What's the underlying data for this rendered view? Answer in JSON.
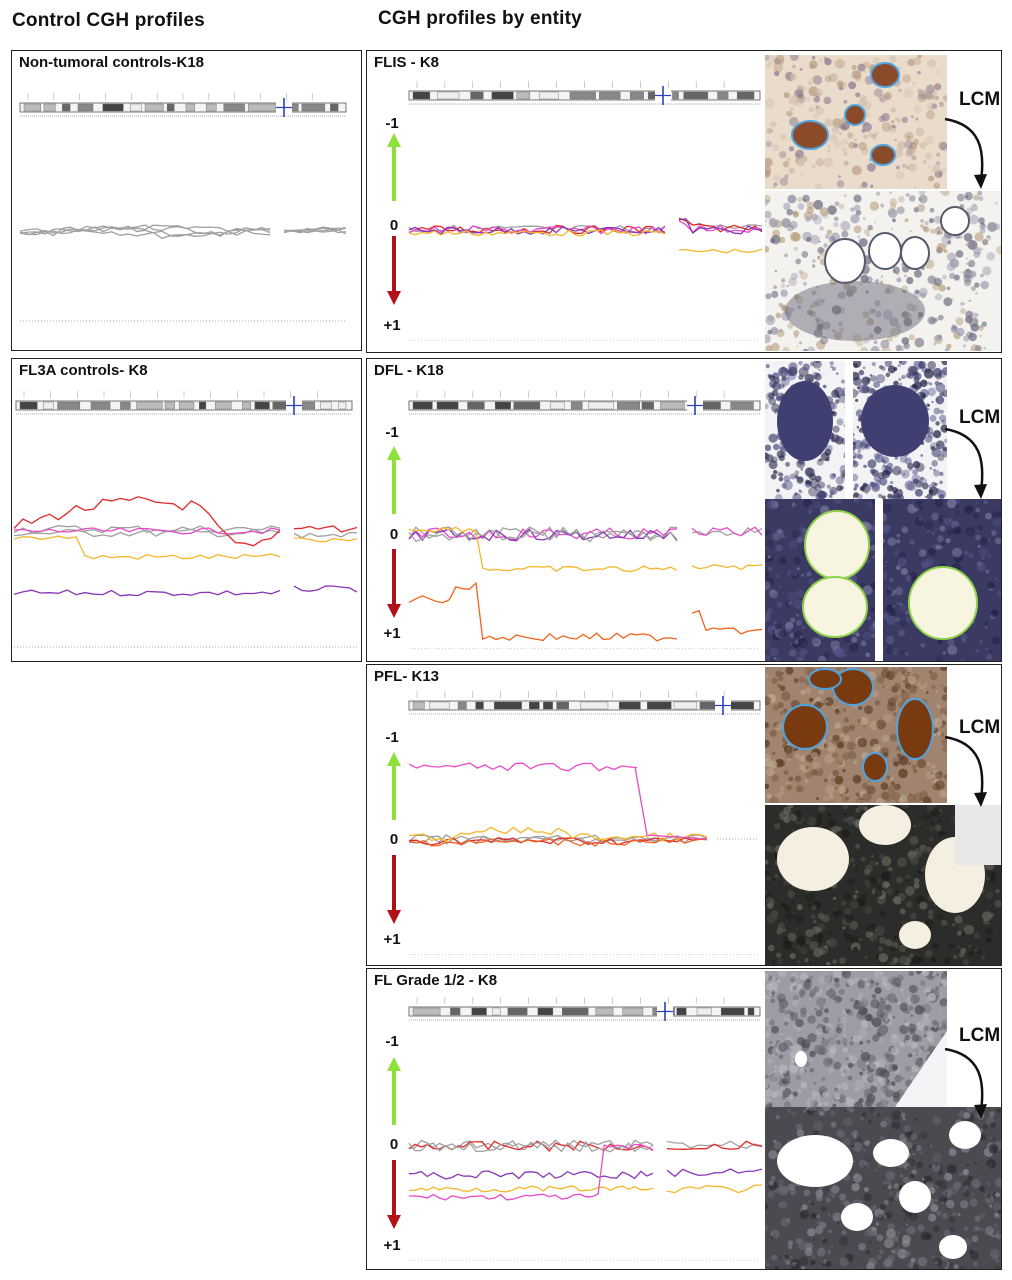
{
  "headings": {
    "left": "Control CGH profiles",
    "right": "CGH profiles by entity"
  },
  "scale": {
    "top": "-1",
    "middle": "0",
    "bottom": "+1"
  },
  "lcm_label": "LCM",
  "colors": {
    "gray": "#a0a0a0",
    "red": "#e02a2a",
    "orange": "#f0631f",
    "yellow": "#f5b62a",
    "magenta": "#e84bc6",
    "purple": "#8a35b8",
    "arrow_up": "#8fe03a",
    "arrow_down": "#b0121a",
    "ideogram_marker": "#2a3fbf"
  },
  "panels": {
    "non_tumoral": {
      "title": "Non-tumoral controls-K18"
    },
    "fl3a": {
      "title": "FL3A controls- K8"
    },
    "flis": {
      "title": "FLIS - K8",
      "micrograph_top": "ihc-brown-small-follicles",
      "micrograph_bottom": "he-dissected-follicles"
    },
    "dfl": {
      "title": "DFL - K18",
      "micrograph_top": "blue-stained-mucosa",
      "micrograph_bottom": "dissected-circles-green"
    },
    "pfl": {
      "title": "PFL- K13",
      "micrograph_top": "ihc-brown-follicles-blue-outline",
      "micrograph_bottom": "dissected-follicles-dark"
    },
    "fl12": {
      "title": "FL Grade 1/2 - K8",
      "micrograph_top": "gray-nodular-tissue",
      "micrograph_bottom": "dissected-nodules-gray"
    }
  }
}
